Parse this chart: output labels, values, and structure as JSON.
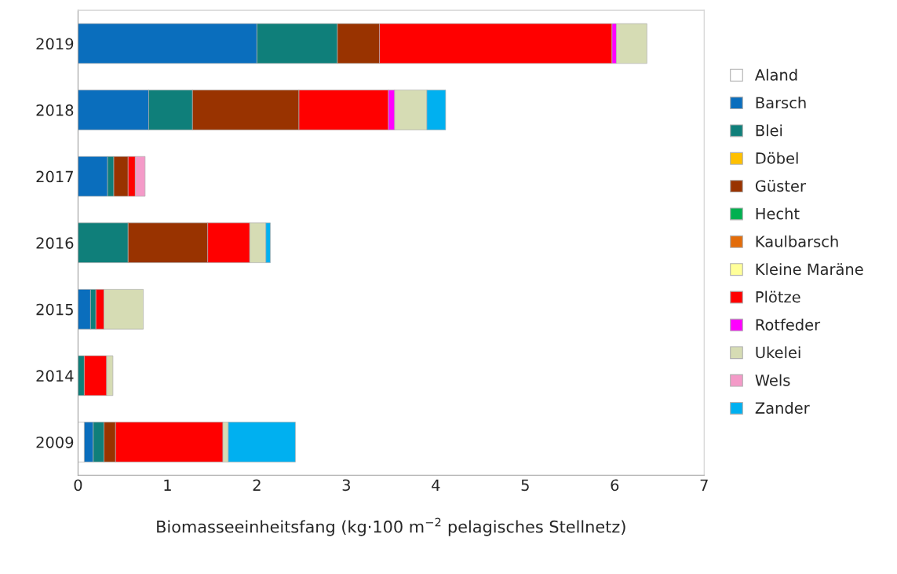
{
  "chart_data": {
    "type": "bar",
    "orientation": "horizontal",
    "stacked": true,
    "legend": "right",
    "xlabel": "Biomasseeinheitsfang (kg·100 m$^{−2}$ pelagisches Stellnetz)",
    "categories": [
      "2019",
      "2018",
      "2017",
      "2016",
      "2015",
      "2014",
      "2009"
    ],
    "xlim": [
      0,
      7
    ],
    "xticks": [
      0,
      1,
      2,
      3,
      4,
      5,
      6,
      7
    ],
    "grid": false,
    "series": [
      {
        "name": "Aland",
        "color": "#ffffff",
        "values": [
          null,
          null,
          null,
          null,
          null,
          null,
          0.07
        ]
      },
      {
        "name": "Barsch",
        "color": "#0a6ebd",
        "values": [
          2.0,
          0.79,
          0.33,
          null,
          0.14,
          null,
          0.1
        ]
      },
      {
        "name": "Blei",
        "color": "#0f7f7a",
        "values": [
          0.9,
          0.49,
          0.07,
          0.56,
          0.06,
          0.07,
          0.12
        ]
      },
      {
        "name": "Döbel",
        "color": "#ffc000",
        "values": [
          null,
          null,
          null,
          null,
          null,
          null,
          null
        ]
      },
      {
        "name": "Güster",
        "color": "#993300",
        "values": [
          0.47,
          1.19,
          0.16,
          0.89,
          null,
          null,
          0.13
        ]
      },
      {
        "name": "Hecht",
        "color": "#00b050",
        "values": [
          null,
          null,
          null,
          null,
          null,
          null,
          null
        ]
      },
      {
        "name": "Kaulbarsch",
        "color": "#e36c09",
        "values": [
          null,
          null,
          null,
          null,
          null,
          null,
          null
        ]
      },
      {
        "name": "Kleine Maräne",
        "color": "#ffff99",
        "values": [
          null,
          null,
          null,
          null,
          null,
          null,
          null
        ]
      },
      {
        "name": "Plötze",
        "color": "#ff0000",
        "values": [
          2.6,
          1.0,
          0.08,
          0.47,
          0.09,
          0.25,
          1.2
        ]
      },
      {
        "name": "Rotfeder",
        "color": "#ff00ff",
        "values": [
          0.05,
          0.07,
          null,
          null,
          null,
          null,
          null
        ]
      },
      {
        "name": "Ukelei",
        "color": "#d6dcb4",
        "values": [
          0.34,
          0.36,
          null,
          0.18,
          0.44,
          0.07,
          0.06
        ]
      },
      {
        "name": "Wels",
        "color": "#f49ac8",
        "values": [
          null,
          null,
          0.11,
          null,
          null,
          null,
          null
        ]
      },
      {
        "name": "Zander",
        "color": "#00b0f0",
        "values": [
          null,
          0.21,
          null,
          0.05,
          null,
          null,
          0.75
        ]
      }
    ]
  }
}
